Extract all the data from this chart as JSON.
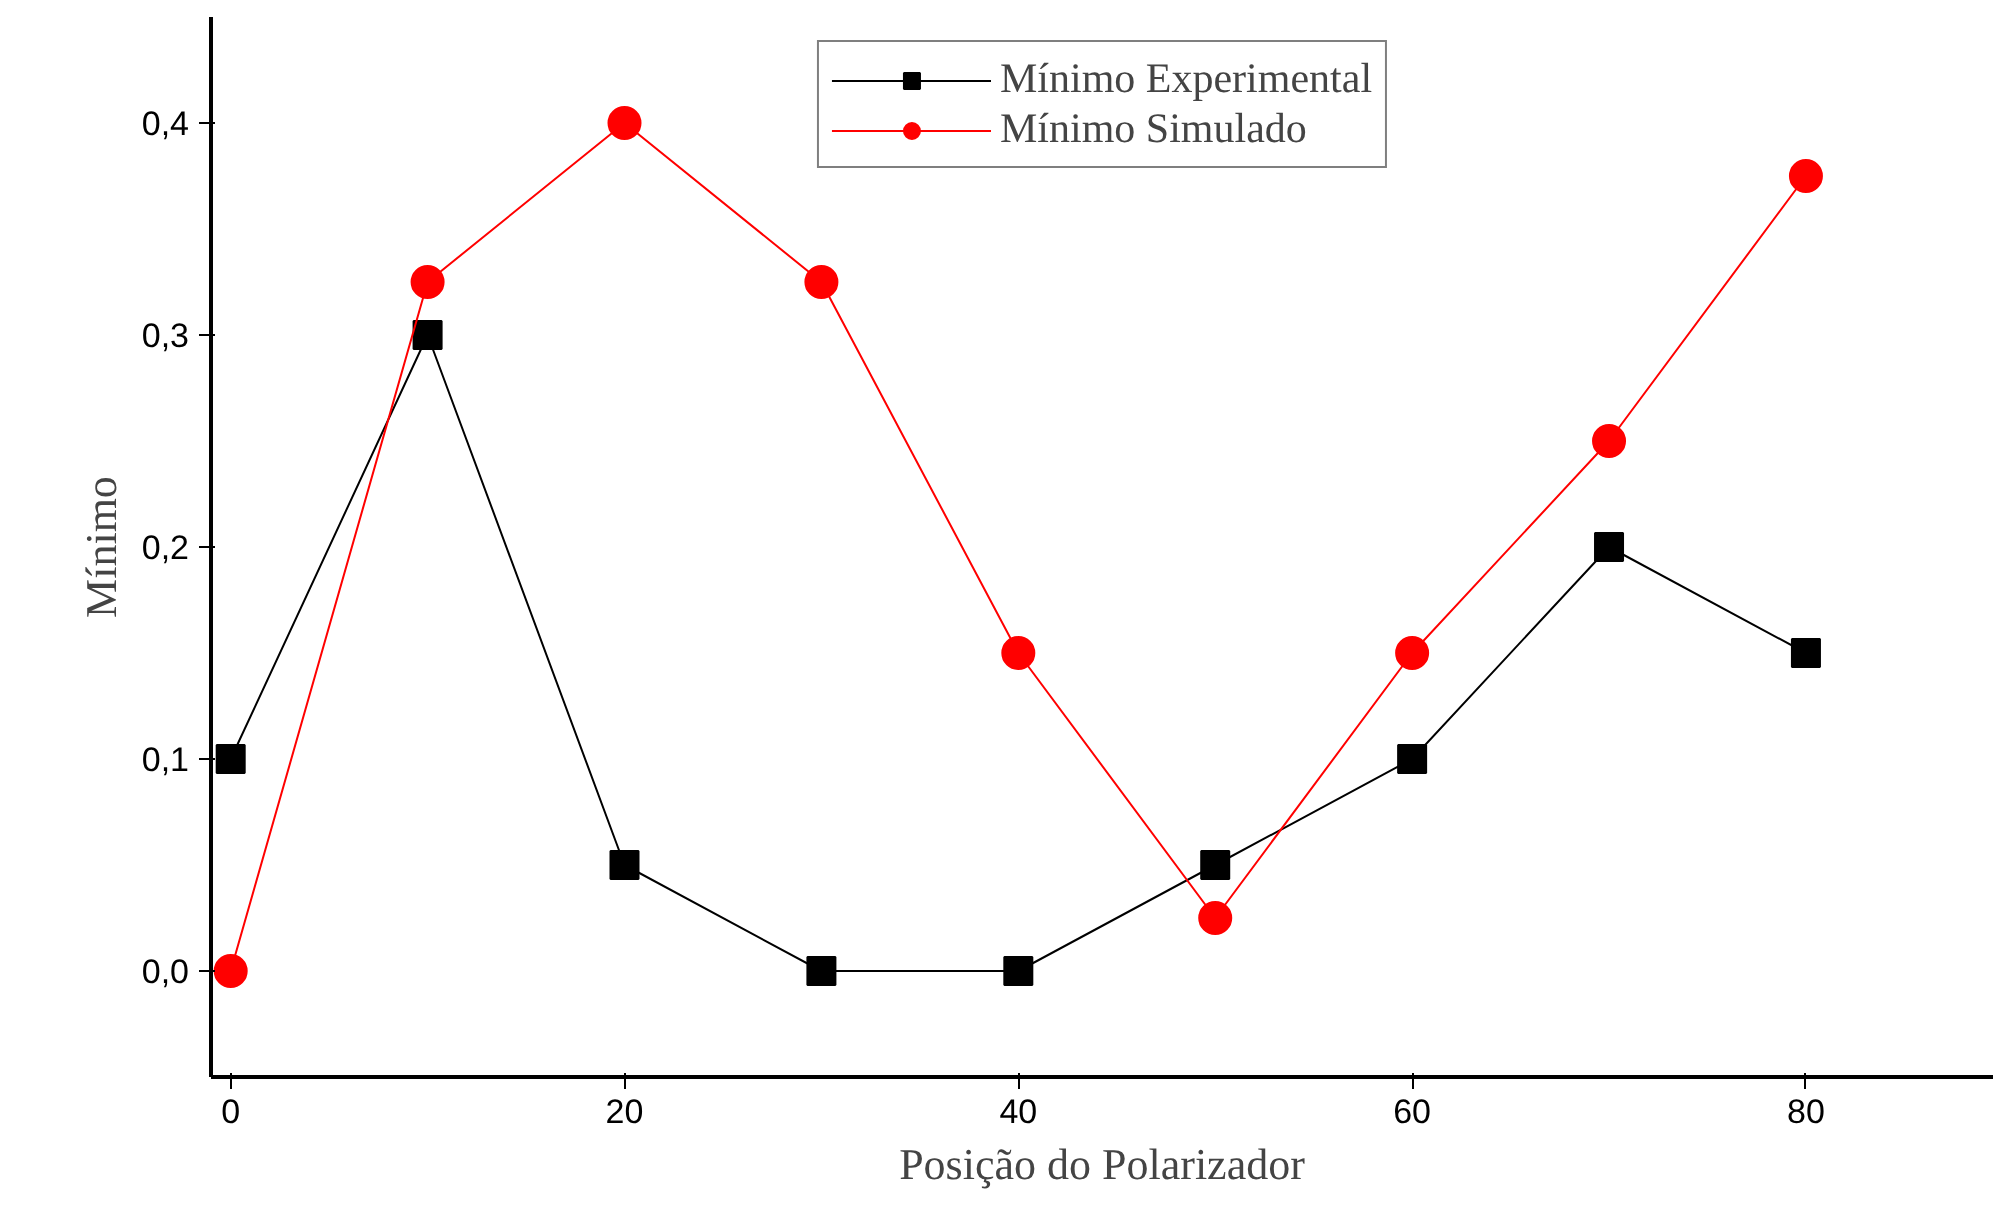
{
  "chart_data": {
    "type": "line",
    "xlabel": "Posição do Polarizador",
    "ylabel": "Mínimo",
    "x": [
      0,
      10,
      20,
      30,
      40,
      50,
      60,
      70,
      80
    ],
    "series": [
      {
        "name": "Mínimo Experimental",
        "color": "#000000",
        "marker": "square",
        "values": [
          0.1,
          0.3,
          0.05,
          0,
          0,
          0.05,
          0.1,
          0.2,
          0.15
        ]
      },
      {
        "name": "Mínimo Simulado",
        "color": "#ff0000",
        "marker": "circle",
        "values": [
          0,
          0.325,
          0.4,
          0.325,
          0.15,
          0.025,
          0.15,
          0.25,
          0.375
        ]
      }
    ],
    "xlim": [
      -1,
      89.5
    ],
    "ylim": [
      -0.05,
      0.45
    ],
    "xticks": [
      0,
      20,
      40,
      60,
      80
    ],
    "yticks": [
      {
        "value": 0,
        "label": "0,0"
      },
      {
        "value": 0.1,
        "label": "0,1"
      },
      {
        "value": 0.2,
        "label": "0,2"
      },
      {
        "value": 0.3,
        "label": "0,3"
      },
      {
        "value": 0.4,
        "label": "0,4"
      }
    ],
    "grid": false,
    "legend": "top",
    "line_style": "solid"
  }
}
